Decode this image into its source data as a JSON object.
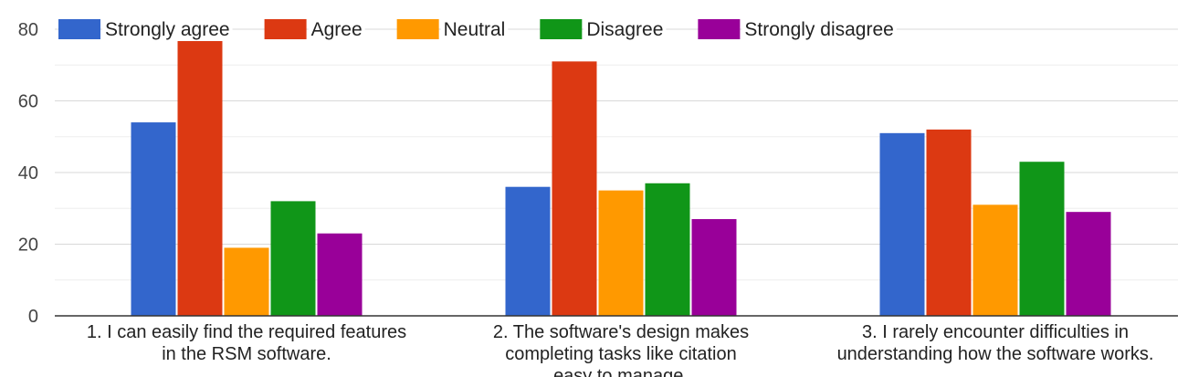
{
  "chart_data": {
    "type": "bar",
    "categories": [
      [
        "1. I can easily find the required features",
        "in the RSM software."
      ],
      [
        "2. The software's design makes",
        "completing tasks like citation",
        "easy to manage."
      ],
      [
        "3. I rarely encounter difficulties in",
        "understanding how the software works."
      ]
    ],
    "series": [
      {
        "name": "Strongly agree",
        "color": "#3366cc",
        "values": [
          54,
          36,
          51
        ]
      },
      {
        "name": "Agree",
        "color": "#dc3912",
        "values": [
          78,
          71,
          52
        ]
      },
      {
        "name": "Neutral",
        "color": "#ff9900",
        "values": [
          19,
          35,
          31
        ]
      },
      {
        "name": "Disagree",
        "color": "#109618",
        "values": [
          32,
          37,
          43
        ]
      },
      {
        "name": "Strongly disagree",
        "color": "#990099",
        "values": [
          23,
          27,
          29
        ]
      }
    ],
    "ylim": [
      0,
      80
    ],
    "yticks": [
      0,
      20,
      40,
      60,
      80
    ],
    "grid": true,
    "legend": "top-left"
  }
}
